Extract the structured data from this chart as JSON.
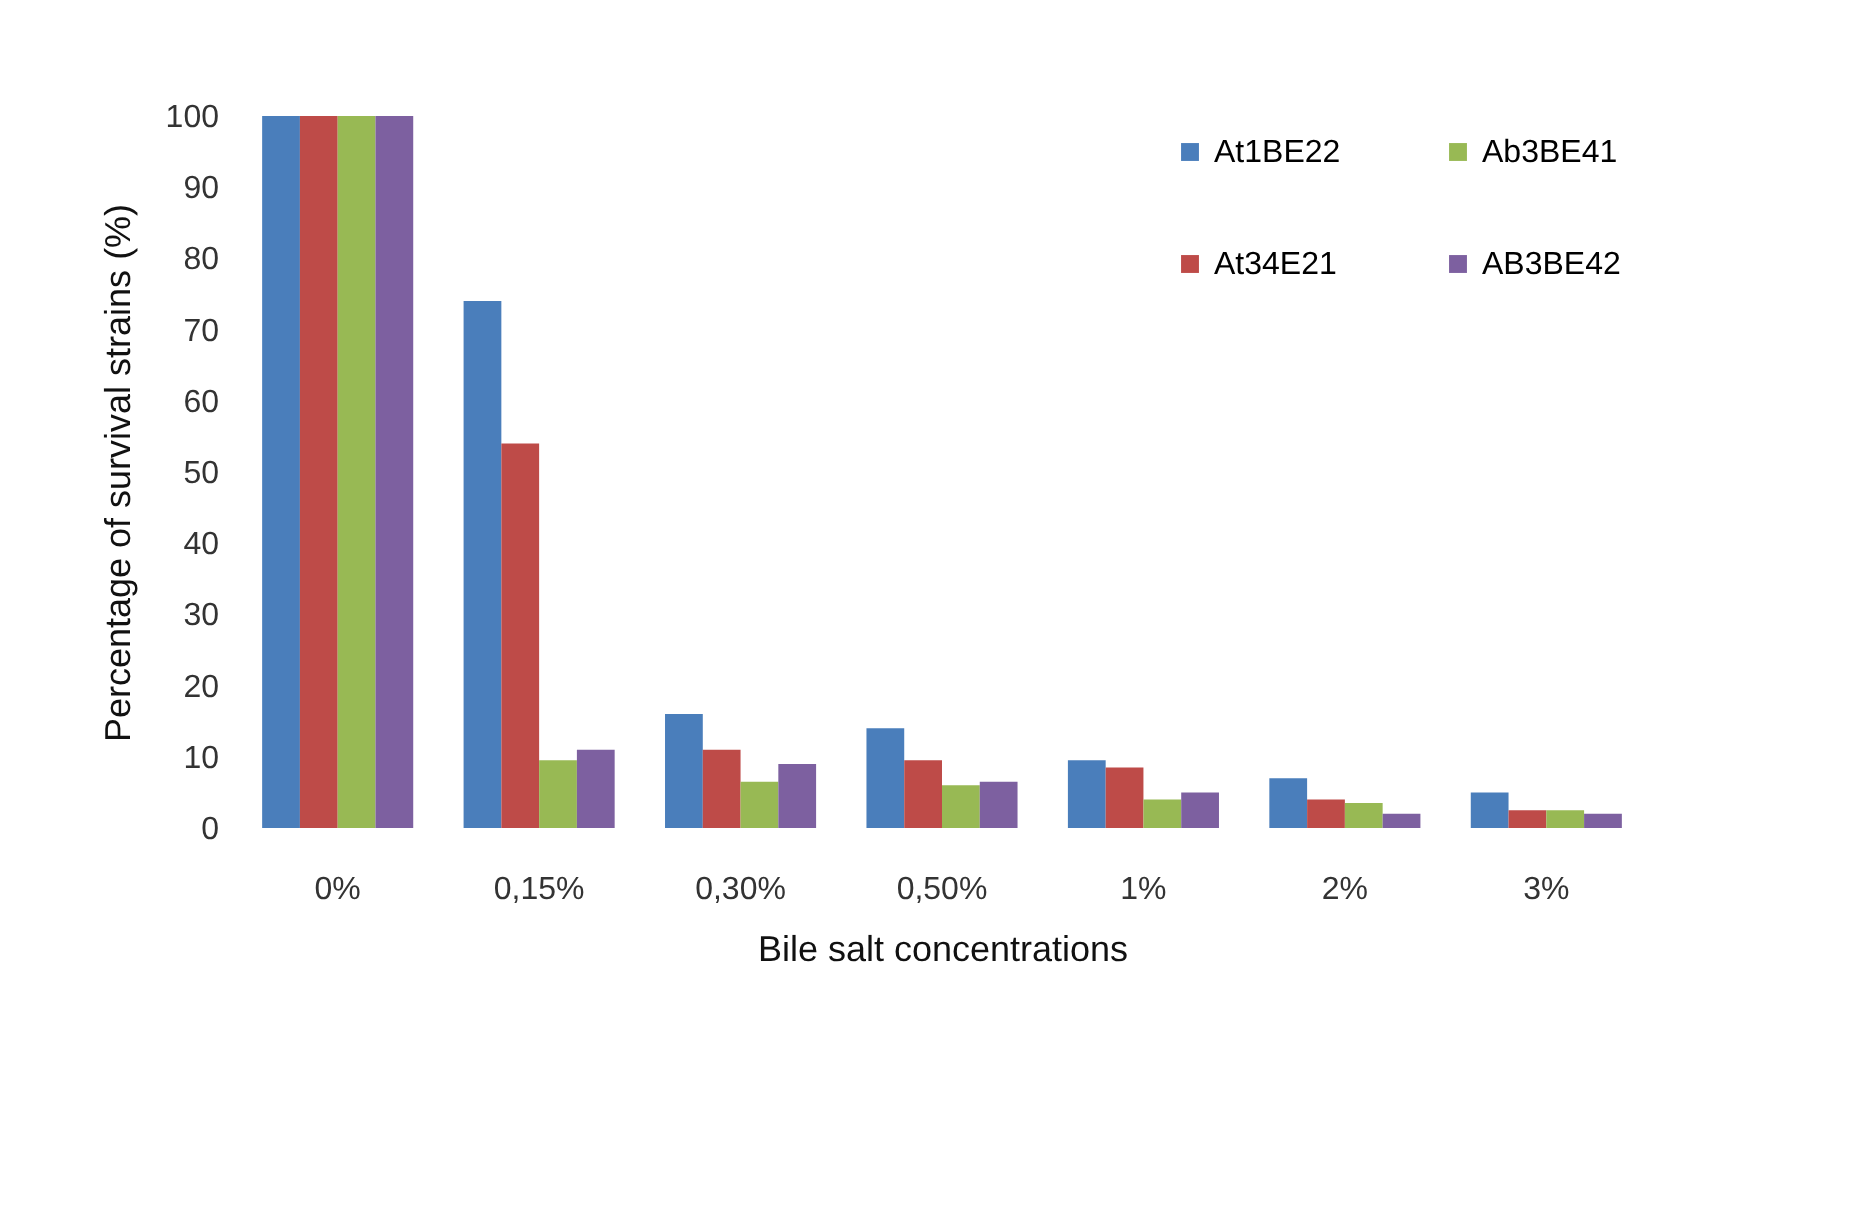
{
  "chart_data": {
    "type": "bar",
    "xlabel": "Bile salt concentrations",
    "ylabel": "Percentage of survival strains (%)",
    "categories": [
      "0%",
      "0,15%",
      "0,30%",
      "0,50%",
      "1%",
      "2%",
      "3%"
    ],
    "series": [
      {
        "name": "At1BE22",
        "color": "#4a7ebb",
        "values": [
          100,
          74,
          16,
          14,
          9.5,
          7,
          5
        ]
      },
      {
        "name": "At34E21",
        "color": "#be4b48",
        "values": [
          100,
          54,
          11,
          9.5,
          8.5,
          4,
          2.5
        ]
      },
      {
        "name": "Ab3BE41",
        "color": "#98b954",
        "values": [
          100,
          9.5,
          6.5,
          6,
          4,
          3.5,
          2.5
        ]
      },
      {
        "name": "AB3BE42",
        "color": "#7d60a0",
        "values": [
          100,
          11,
          9,
          6.5,
          5,
          2,
          2
        ]
      }
    ],
    "ylim": [
      0,
      100
    ],
    "yticks": [
      0,
      10,
      20,
      30,
      40,
      50,
      60,
      70,
      80,
      90,
      100
    ],
    "grid": false,
    "legend": "top right"
  }
}
